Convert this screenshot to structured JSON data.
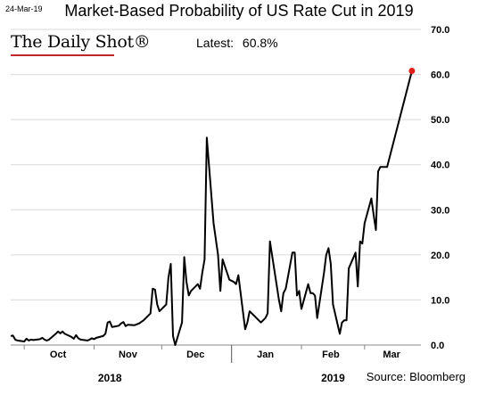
{
  "header": {
    "date_stamp": "24-Mar-19",
    "brand": "The Daily Shot®",
    "latest_label": "Latest:",
    "latest_value": "60.8%",
    "source": "Source: Bloomberg"
  },
  "colors": {
    "line": "#000000",
    "highlight_dot": "#e0201b",
    "brand_rule": "#c0272d"
  },
  "chart_data": {
    "type": "line",
    "title": "Market-Based Probability of US Rate Cut in 2019",
    "xlabel": "",
    "ylabel": "",
    "ylim": [
      0,
      70
    ],
    "y_ticks": [
      "0.0",
      "10.0",
      "20.0",
      "30.0",
      "40.0",
      "50.0",
      "60.0",
      "70.0"
    ],
    "grid": "horizontal",
    "x_months": [
      {
        "label": "Oct",
        "start": "2018-10-01",
        "mid": "2018-10-16"
      },
      {
        "label": "Nov",
        "start": "2018-11-01",
        "mid": "2018-11-16"
      },
      {
        "label": "Dec",
        "start": "2018-12-01",
        "mid": "2018-12-16"
      },
      {
        "label": "Jan",
        "start": "2019-01-01",
        "mid": "2019-01-16"
      },
      {
        "label": "Feb",
        "start": "2019-02-01",
        "mid": "2019-02-14"
      },
      {
        "label": "Mar",
        "start": "2019-03-01",
        "mid": "2019-03-13"
      }
    ],
    "x_years": [
      {
        "label": "2018",
        "mid": "2018-11-08"
      },
      {
        "label": "2019",
        "mid": "2019-02-15"
      }
    ],
    "x_range": [
      "2018-09-25",
      "2019-03-26"
    ],
    "series": [
      {
        "values": [
          [
            "2018-09-25",
            2.0
          ],
          [
            "2018-09-26",
            2.1
          ],
          [
            "2018-09-27",
            1.2
          ],
          [
            "2018-09-28",
            1.0
          ],
          [
            "2018-10-01",
            0.8
          ],
          [
            "2018-10-02",
            1.4
          ],
          [
            "2018-10-03",
            1.0
          ],
          [
            "2018-10-04",
            1.2
          ],
          [
            "2018-10-05",
            1.1
          ],
          [
            "2018-10-08",
            1.3
          ],
          [
            "2018-10-09",
            1.6
          ],
          [
            "2018-10-10",
            1.2
          ],
          [
            "2018-10-11",
            1.0
          ],
          [
            "2018-10-12",
            1.2
          ],
          [
            "2018-10-15",
            2.5
          ],
          [
            "2018-10-16",
            3.0
          ],
          [
            "2018-10-17",
            2.6
          ],
          [
            "2018-10-18",
            3.0
          ],
          [
            "2018-10-19",
            2.5
          ],
          [
            "2018-10-22",
            1.8
          ],
          [
            "2018-10-23",
            1.4
          ],
          [
            "2018-10-24",
            2.2
          ],
          [
            "2018-10-25",
            1.5
          ],
          [
            "2018-10-26",
            1.2
          ],
          [
            "2018-10-29",
            1.0
          ],
          [
            "2018-10-30",
            1.2
          ],
          [
            "2018-10-31",
            1.5
          ],
          [
            "2018-11-01",
            1.3
          ],
          [
            "2018-11-02",
            1.6
          ],
          [
            "2018-11-05",
            2.0
          ],
          [
            "2018-11-06",
            2.5
          ],
          [
            "2018-11-07",
            5.0
          ],
          [
            "2018-11-08",
            5.2
          ],
          [
            "2018-11-09",
            4.0
          ],
          [
            "2018-11-12",
            4.3
          ],
          [
            "2018-11-13",
            4.8
          ],
          [
            "2018-11-14",
            5.1
          ],
          [
            "2018-11-15",
            4.2
          ],
          [
            "2018-11-16",
            4.5
          ],
          [
            "2018-11-19",
            4.4
          ],
          [
            "2018-11-20",
            4.6
          ],
          [
            "2018-11-21",
            4.8
          ],
          [
            "2018-11-23",
            5.5
          ],
          [
            "2018-11-26",
            7.0
          ],
          [
            "2018-11-27",
            12.5
          ],
          [
            "2018-11-28",
            12.3
          ],
          [
            "2018-11-29",
            9.0
          ],
          [
            "2018-11-30",
            7.5
          ],
          [
            "2018-12-03",
            9.0
          ],
          [
            "2018-12-04",
            15.0
          ],
          [
            "2018-12-05",
            18.0
          ],
          [
            "2018-12-06",
            2.0
          ],
          [
            "2018-12-07",
            0.0
          ],
          [
            "2018-12-10",
            5.0
          ],
          [
            "2018-12-11",
            19.5
          ],
          [
            "2018-12-12",
            14.0
          ],
          [
            "2018-12-13",
            11.0
          ],
          [
            "2018-12-14",
            12.0
          ],
          [
            "2018-12-17",
            13.5
          ],
          [
            "2018-12-18",
            12.5
          ],
          [
            "2018-12-19",
            16.0
          ],
          [
            "2018-12-20",
            19.0
          ],
          [
            "2018-12-21",
            46.0
          ],
          [
            "2018-12-24",
            27.0
          ],
          [
            "2018-12-26",
            20.0
          ],
          [
            "2018-12-27",
            12.0
          ],
          [
            "2018-12-28",
            19.0
          ],
          [
            "2018-12-31",
            14.5
          ],
          [
            "2019-01-02",
            14.0
          ],
          [
            "2019-01-03",
            13.5
          ],
          [
            "2019-01-04",
            15.5
          ],
          [
            "2019-01-07",
            3.5
          ],
          [
            "2019-01-08",
            5.0
          ],
          [
            "2019-01-09",
            7.5
          ],
          [
            "2019-01-10",
            7.0
          ],
          [
            "2019-01-11",
            6.5
          ],
          [
            "2019-01-14",
            5.0
          ],
          [
            "2019-01-15",
            5.5
          ],
          [
            "2019-01-16",
            6.0
          ],
          [
            "2019-01-17",
            7.0
          ],
          [
            "2019-01-18",
            23.0
          ],
          [
            "2019-01-22",
            10.0
          ],
          [
            "2019-01-23",
            7.5
          ],
          [
            "2019-01-24",
            11.5
          ],
          [
            "2019-01-25",
            12.5
          ],
          [
            "2019-01-28",
            20.5
          ],
          [
            "2019-01-29",
            20.5
          ],
          [
            "2019-01-30",
            11.0
          ],
          [
            "2019-01-31",
            12.0
          ],
          [
            "2019-02-01",
            8.0
          ],
          [
            "2019-02-04",
            13.5
          ],
          [
            "2019-02-05",
            11.5
          ],
          [
            "2019-02-06",
            11.5
          ],
          [
            "2019-02-07",
            11.0
          ],
          [
            "2019-02-08",
            6.0
          ],
          [
            "2019-02-11",
            16.0
          ],
          [
            "2019-02-12",
            20.0
          ],
          [
            "2019-02-13",
            21.5
          ],
          [
            "2019-02-14",
            18.0
          ],
          [
            "2019-02-15",
            9.0
          ],
          [
            "2019-02-18",
            2.5
          ],
          [
            "2019-02-19",
            5.0
          ],
          [
            "2019-02-20",
            5.5
          ],
          [
            "2019-02-21",
            5.5
          ],
          [
            "2019-02-22",
            17.0
          ],
          [
            "2019-02-25",
            20.5
          ],
          [
            "2019-02-26",
            13.0
          ],
          [
            "2019-02-27",
            23.0
          ],
          [
            "2019-02-28",
            22.5
          ],
          [
            "2019-03-01",
            27.0
          ],
          [
            "2019-03-04",
            32.5
          ],
          [
            "2019-03-05",
            29.0
          ],
          [
            "2019-03-06",
            25.5
          ],
          [
            "2019-03-07",
            38.5
          ],
          [
            "2019-03-08",
            39.5
          ],
          [
            "2019-03-11",
            39.5
          ],
          [
            "2019-03-22",
            60.8
          ]
        ]
      }
    ],
    "highlight": {
      "x": "2019-03-22",
      "y": 60.8
    }
  }
}
